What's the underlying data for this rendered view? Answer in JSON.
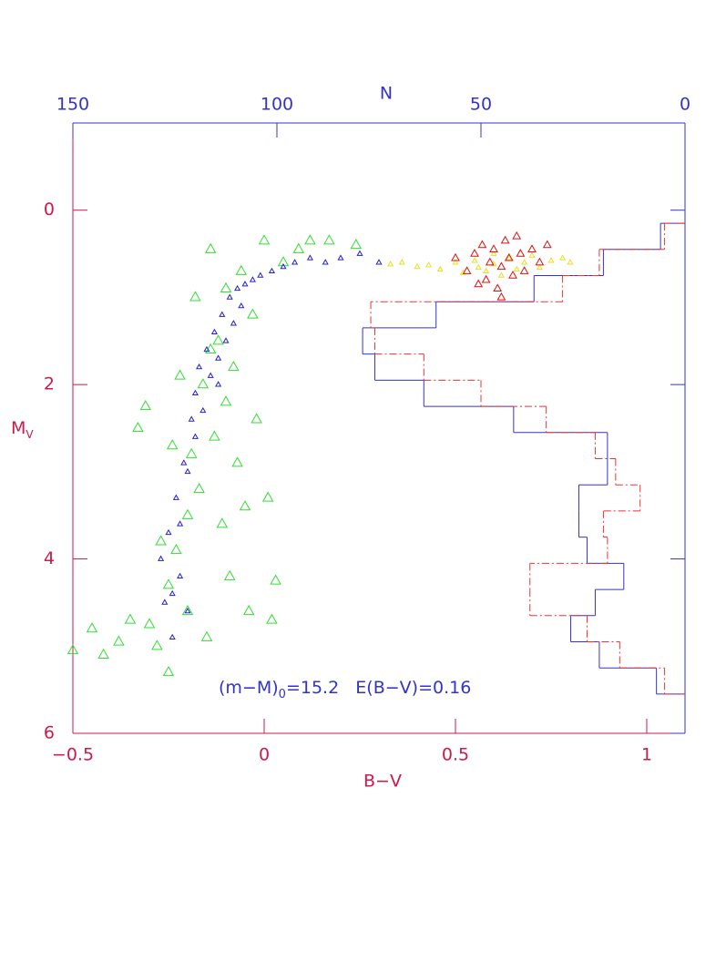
{
  "chart_data": {
    "type": "scatter",
    "xlabel": "B−V",
    "ylabel": "M",
    "ylabel_sub": "V",
    "x2label": "N",
    "annotation": [
      "(m−M)",
      "0",
      "=15.2   E(B−V)=0.16"
    ],
    "xlim": [
      -0.5,
      1.1
    ],
    "xticks": [
      {
        "value": -0.5,
        "label": "−0.5"
      },
      0,
      0.5,
      1
    ],
    "ylim": [
      6,
      -1
    ],
    "yticks": [
      0,
      2,
      4,
      6
    ],
    "x2lim": [
      150,
      0
    ],
    "x2ticks": [
      150,
      100,
      50,
      0
    ],
    "axis_color": "#cc1a4a",
    "axis2_color": "#3333cc",
    "series": [
      {
        "type": "scatter",
        "marker": "triangle",
        "marker_size": "large",
        "color": "#33dd33",
        "x": [
          -0.5,
          -0.45,
          -0.42,
          -0.38,
          -0.35,
          -0.33,
          -0.31,
          -0.3,
          -0.28,
          -0.27,
          -0.25,
          -0.24,
          -0.23,
          -0.22,
          -0.2,
          -0.18,
          -0.17,
          -0.16,
          -0.15,
          -0.14,
          -0.13,
          -0.12,
          -0.11,
          -0.1,
          -0.09,
          -0.08,
          -0.07,
          -0.06,
          -0.05,
          -0.04,
          -0.03,
          -0.02,
          0,
          0.01,
          0.02,
          0.03,
          0.05,
          0.09,
          0.12,
          0.17,
          0.24,
          -0.2,
          -0.25,
          -0.19,
          -0.1,
          -0.14
        ],
        "values": [
          5.05,
          4.8,
          5.1,
          4.95,
          4.7,
          2.5,
          2.25,
          4.75,
          5.0,
          3.8,
          5.3,
          2.7,
          3.9,
          1.9,
          4.6,
          1.0,
          3.2,
          2.0,
          4.9,
          0.45,
          2.6,
          1.5,
          3.6,
          0.9,
          4.2,
          1.8,
          2.9,
          0.7,
          3.4,
          4.6,
          1.2,
          2.4,
          0.35,
          3.3,
          4.7,
          4.25,
          0.6,
          0.45,
          0.35,
          0.35,
          0.4,
          3.5,
          4.3,
          2.8,
          2.2,
          1.6
        ]
      },
      {
        "type": "scatter",
        "marker": "triangle",
        "marker_size": "small",
        "color": "#2222cc",
        "x": [
          -0.27,
          -0.26,
          -0.25,
          -0.24,
          -0.23,
          -0.22,
          -0.21,
          -0.2,
          -0.19,
          -0.18,
          -0.17,
          -0.16,
          -0.15,
          -0.14,
          -0.13,
          -0.12,
          -0.11,
          -0.1,
          -0.09,
          -0.08,
          -0.07,
          -0.06,
          -0.05,
          -0.03,
          -0.01,
          0.02,
          0.05,
          0.08,
          0.12,
          0.16,
          0.2,
          0.25,
          0.3,
          -0.2,
          -0.22,
          -0.18,
          -0.12,
          -0.24
        ],
        "values": [
          4.0,
          4.5,
          3.7,
          4.9,
          3.3,
          4.2,
          2.9,
          3.0,
          2.4,
          2.1,
          1.8,
          2.3,
          1.6,
          1.9,
          1.4,
          1.7,
          1.2,
          1.5,
          1.0,
          1.3,
          0.9,
          1.1,
          0.85,
          0.8,
          0.75,
          0.7,
          0.65,
          0.6,
          0.55,
          0.6,
          0.55,
          0.5,
          0.6,
          4.6,
          3.6,
          2.6,
          2.0,
          4.4
        ]
      },
      {
        "type": "scatter",
        "marker": "triangle",
        "marker_size": "small",
        "color": "#e8e020",
        "x": [
          0.33,
          0.36,
          0.4,
          0.43,
          0.46,
          0.5,
          0.52,
          0.55,
          0.58,
          0.6,
          0.62,
          0.64,
          0.66,
          0.68,
          0.7,
          0.72,
          0.75,
          0.78,
          0.8,
          0.56,
          0.6
        ],
        "values": [
          0.62,
          0.6,
          0.65,
          0.63,
          0.68,
          0.6,
          0.72,
          0.58,
          0.7,
          0.62,
          0.75,
          0.55,
          0.68,
          0.6,
          0.52,
          0.66,
          0.58,
          0.55,
          0.6,
          0.66,
          0.5
        ]
      },
      {
        "type": "scatter",
        "marker": "triangle",
        "marker_size": "medium",
        "color": "#dd1111",
        "x": [
          0.5,
          0.53,
          0.55,
          0.57,
          0.58,
          0.59,
          0.6,
          0.61,
          0.62,
          0.63,
          0.64,
          0.65,
          0.66,
          0.67,
          0.68,
          0.7,
          0.72,
          0.74,
          0.56,
          0.62
        ],
        "values": [
          0.55,
          0.7,
          0.5,
          0.4,
          0.8,
          0.6,
          0.45,
          0.9,
          0.65,
          0.35,
          0.55,
          0.75,
          0.3,
          0.5,
          0.7,
          0.45,
          0.6,
          0.4,
          0.85,
          1.0
        ]
      },
      {
        "type": "step",
        "axis": "x2",
        "color": "#3333cc",
        "dash": "solid",
        "bins": [
          0.15,
          0.45,
          0.75,
          1.05,
          1.35,
          1.65,
          1.95,
          2.25,
          2.55,
          2.85,
          3.15,
          3.45,
          3.75,
          4.05,
          4.35,
          4.65,
          4.95,
          5.25,
          5.55
        ],
        "values": [
          6,
          20,
          37,
          61,
          79,
          76,
          64,
          42,
          19,
          19,
          26,
          26,
          24,
          15,
          22,
          28,
          21,
          7
        ]
      },
      {
        "type": "step",
        "axis": "x2",
        "color": "#ee3333",
        "dash": "dashdot",
        "bins": [
          0.15,
          0.45,
          0.75,
          1.05,
          1.35,
          1.65,
          1.95,
          2.25,
          2.55,
          2.85,
          3.15,
          3.45,
          3.75,
          4.05,
          4.35,
          4.65,
          4.95,
          5.25,
          5.55
        ],
        "values": [
          5,
          21,
          30,
          77,
          76,
          64,
          50,
          34,
          22,
          17,
          11,
          20,
          19,
          38,
          38,
          24,
          16,
          5
        ]
      }
    ]
  }
}
